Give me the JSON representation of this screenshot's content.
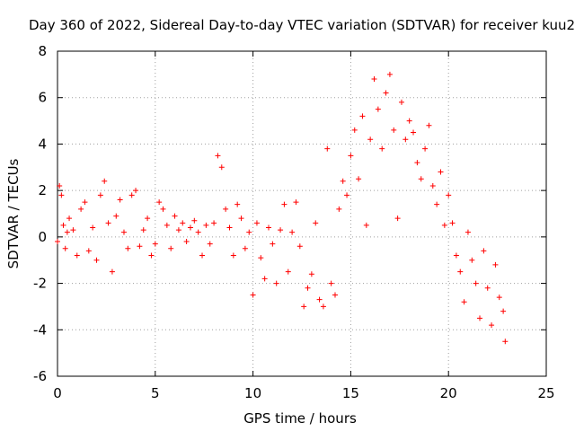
{
  "chart_data": {
    "type": "scatter",
    "title": "Day 360 of 2022, Sidereal Day-to-day VTEC variation (SDTVAR) for receiver kuu2",
    "xlabel": "GPS time / hours",
    "ylabel": "SDTVAR / TECUs",
    "xlim": [
      0,
      25
    ],
    "ylim": [
      -6,
      8
    ],
    "x_ticks": [
      0,
      5,
      10,
      15,
      20,
      25
    ],
    "y_ticks": [
      -6,
      -4,
      -2,
      0,
      2,
      4,
      6,
      8
    ],
    "grid": true,
    "marker": "+",
    "color": "#ff0000",
    "series": [
      {
        "name": "SDTVAR",
        "x": [
          0.0,
          0.1,
          0.2,
          0.3,
          0.4,
          0.5,
          0.6,
          0.8,
          1.0,
          1.2,
          1.4,
          1.6,
          1.8,
          2.0,
          2.2,
          2.4,
          2.6,
          2.8,
          3.0,
          3.2,
          3.4,
          3.6,
          3.8,
          4.0,
          4.2,
          4.4,
          4.6,
          4.8,
          5.0,
          5.2,
          5.4,
          5.6,
          5.8,
          6.0,
          6.2,
          6.4,
          6.6,
          6.8,
          7.0,
          7.2,
          7.4,
          7.6,
          7.8,
          8.0,
          8.2,
          8.4,
          8.6,
          8.8,
          9.0,
          9.2,
          9.4,
          9.6,
          9.8,
          10.0,
          10.2,
          10.4,
          10.6,
          10.8,
          11.0,
          11.2,
          11.4,
          11.6,
          11.8,
          12.0,
          12.2,
          12.4,
          12.6,
          12.8,
          13.0,
          13.2,
          13.4,
          13.6,
          13.8,
          14.0,
          14.2,
          14.4,
          14.6,
          14.8,
          15.0,
          15.2,
          15.4,
          15.6,
          15.8,
          16.0,
          16.2,
          16.4,
          16.6,
          16.8,
          17.0,
          17.2,
          17.4,
          17.6,
          17.8,
          18.0,
          18.2,
          18.4,
          18.6,
          18.8,
          19.0,
          19.2,
          19.4,
          19.6,
          19.8,
          20.0,
          20.2,
          20.4,
          20.6,
          20.8,
          21.0,
          21.2,
          21.4,
          21.6,
          21.8,
          22.0,
          22.2,
          22.4,
          22.6,
          22.8,
          22.9
        ],
        "y": [
          -0.2,
          2.2,
          1.8,
          0.5,
          -0.5,
          0.2,
          0.8,
          0.3,
          -0.8,
          1.2,
          1.5,
          -0.6,
          0.4,
          -1.0,
          1.8,
          2.4,
          0.6,
          -1.5,
          0.9,
          1.6,
          0.2,
          -0.5,
          1.8,
          2.0,
          -0.4,
          0.3,
          0.8,
          -0.8,
          -0.3,
          1.5,
          1.2,
          0.5,
          -0.5,
          0.9,
          0.3,
          0.6,
          -0.2,
          0.4,
          0.7,
          0.2,
          -0.8,
          0.5,
          -0.3,
          0.6,
          3.5,
          3.0,
          1.2,
          0.4,
          -0.8,
          1.4,
          0.8,
          -0.5,
          0.2,
          -2.5,
          0.6,
          -0.9,
          -1.8,
          0.4,
          -0.3,
          -2.0,
          0.3,
          1.4,
          -1.5,
          0.2,
          1.5,
          -0.4,
          -3.0,
          -2.2,
          -1.6,
          0.6,
          -2.7,
          -3.0,
          3.8,
          -2.0,
          -2.5,
          1.2,
          2.4,
          1.8,
          3.5,
          4.6,
          2.5,
          5.2,
          0.5,
          4.2,
          6.8,
          5.5,
          3.8,
          6.2,
          7.0,
          4.6,
          0.8,
          5.8,
          4.2,
          5.0,
          4.5,
          3.2,
          2.5,
          3.8,
          4.8,
          2.2,
          1.4,
          2.8,
          0.5,
          1.8,
          0.6,
          -0.8,
          -1.5,
          -2.8,
          0.2,
          -1.0,
          -2.0,
          -3.5,
          -0.6,
          -2.2,
          -3.8,
          -1.2,
          -2.6,
          -3.2,
          -4.5
        ]
      }
    ]
  }
}
